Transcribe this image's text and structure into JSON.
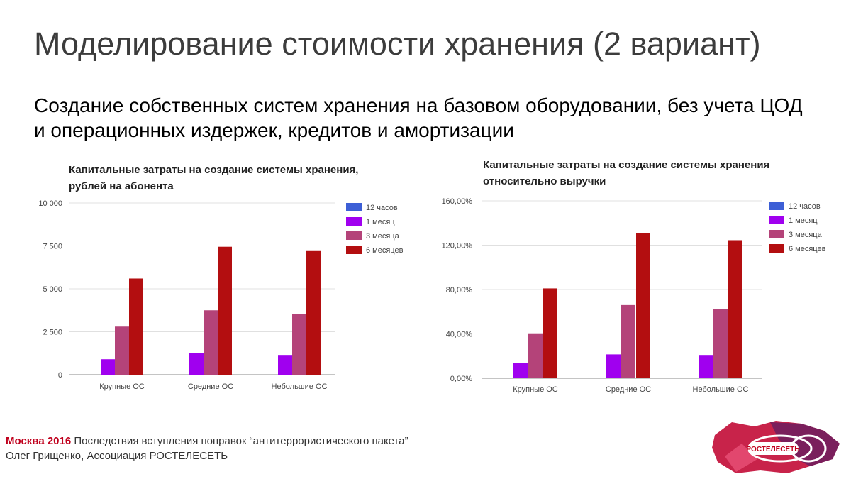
{
  "slide": {
    "title": "Моделирование стоимости хранения (2 вариант)",
    "subtitle": "Создание собственных систем хранения на базовом  оборудовании, без учета ЦОД и операционных издержек, кредитов и амортизации"
  },
  "footer": {
    "city_year": "Москва 2016",
    "event": " Последствия вступления поправок “антитеррористического пакета”",
    "author": "Олег Грищенко, Ассоциация РОСТЕЛЕСЕТЬ"
  },
  "logo": {
    "text": "РОСТЕЛЕСЕТЬ"
  },
  "colors": {
    "12h": "#3d5fd6",
    "1m": "#a000ef",
    "3m": "#b44379",
    "6m": "#b30e10",
    "grid": "#e0e0e0",
    "axis": "#888888"
  },
  "chart_data": [
    {
      "type": "bar",
      "title": "Капитальные затраты на создание системы хранения, рублей на абонента",
      "categories": [
        "Крупные ОС",
        "Средние ОС",
        "Небольшие ОС"
      ],
      "series": [
        {
          "name": "12 часов",
          "values": [
            0,
            0,
            0
          ]
        },
        {
          "name": "1 месяц",
          "values": [
            900,
            1250,
            1150
          ]
        },
        {
          "name": "3 месяца",
          "values": [
            2800,
            3750,
            3550
          ]
        },
        {
          "name": "6 месяцев",
          "values": [
            5600,
            7450,
            7200
          ]
        }
      ],
      "yticks": [
        0,
        2500,
        5000,
        7500,
        10000
      ],
      "ytick_labels": [
        "0",
        "2 500",
        "5 000",
        "7 500",
        "10 000"
      ],
      "ylim": [
        0,
        10000
      ],
      "grid": true,
      "legend": "right"
    },
    {
      "type": "bar",
      "title": "Капитальные затраты на создание системы хранения относительно выручки",
      "categories": [
        "Крупные ОС",
        "Средние ОС",
        "Небольшие ОС"
      ],
      "series": [
        {
          "name": "12 часов",
          "values": [
            0,
            0,
            0
          ]
        },
        {
          "name": "1 месяц",
          "values": [
            13.5,
            21.5,
            21
          ]
        },
        {
          "name": "3 месяца",
          "values": [
            40.5,
            66,
            62.5
          ]
        },
        {
          "name": "6 месяцев",
          "values": [
            81,
            131,
            124.5
          ]
        }
      ],
      "yticks": [
        0,
        40,
        80,
        120,
        160
      ],
      "ytick_labels": [
        "0,00%",
        "40,00%",
        "80,00%",
        "120,00%",
        "160,00%"
      ],
      "ylim": [
        0,
        160
      ],
      "grid": true,
      "legend": "right"
    }
  ]
}
